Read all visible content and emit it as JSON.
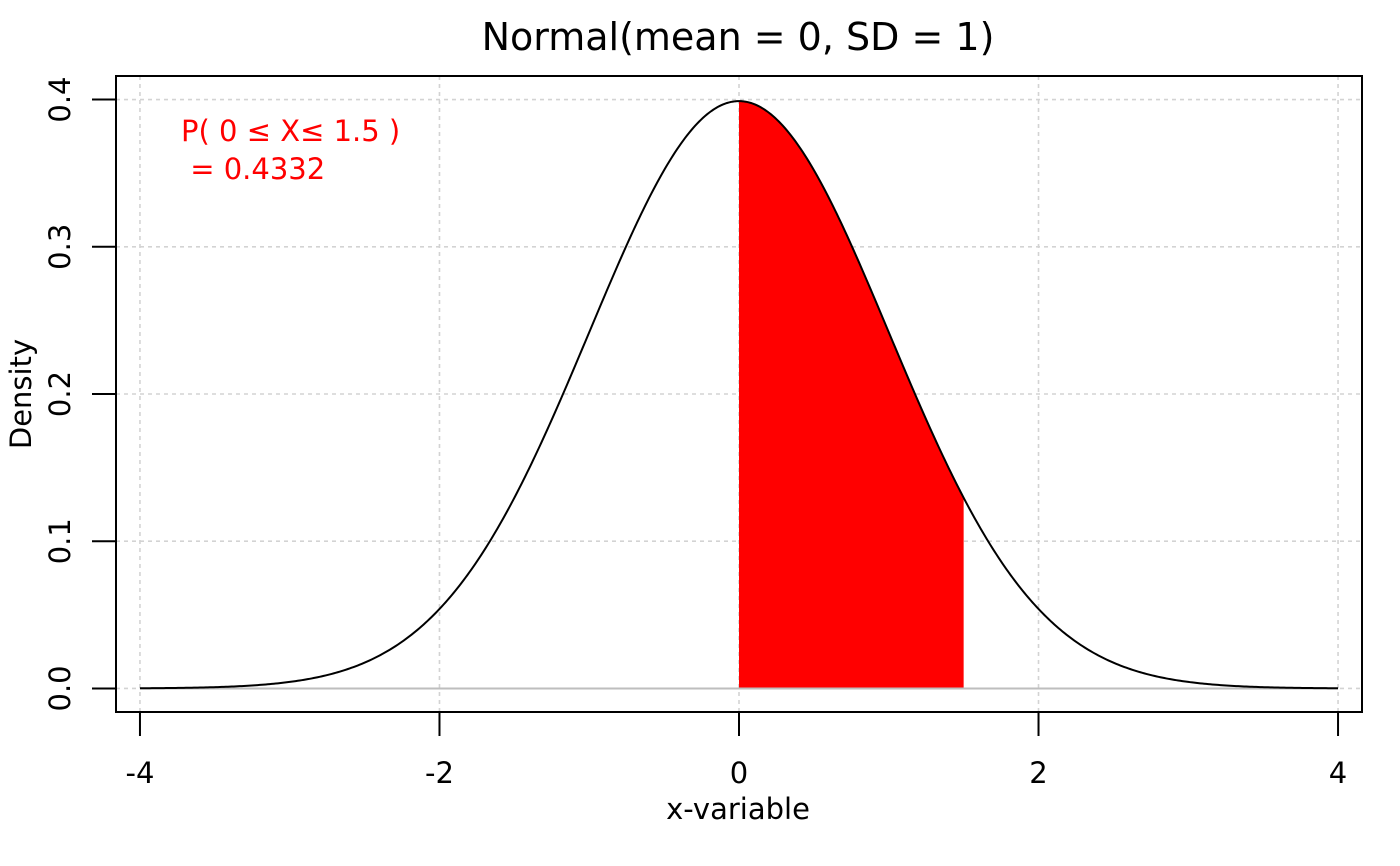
{
  "chart_data": {
    "type": "area",
    "title": "Normal(mean = 0,  SD = 1)",
    "xlabel": "x-variable",
    "ylabel": "Density",
    "xlim": [
      -4.16,
      4.16
    ],
    "ylim": [
      -0.016,
      0.416
    ],
    "x_ticks": [
      -4,
      -2,
      0,
      2,
      4
    ],
    "x_tick_labels": [
      "-4",
      "-2",
      "0",
      "2",
      "4"
    ],
    "y_ticks": [
      0.0,
      0.1,
      0.2,
      0.3,
      0.4
    ],
    "y_tick_labels": [
      "0.0",
      "0.1",
      "0.2",
      "0.3",
      "0.4"
    ],
    "grid": true,
    "distribution": {
      "family": "normal",
      "mean": 0,
      "sd": 1
    },
    "curve": {
      "x": [
        -4,
        -3.5,
        -3,
        -2.5,
        -2,
        -1.5,
        -1,
        -0.5,
        0,
        0.5,
        1,
        1.5,
        2,
        2.5,
        3,
        3.5,
        4
      ],
      "y": [
        0.0001,
        0.0009,
        0.0044,
        0.0175,
        0.054,
        0.1295,
        0.242,
        0.3521,
        0.3989,
        0.3521,
        0.242,
        0.1295,
        0.054,
        0.0175,
        0.0044,
        0.0009,
        0.0001
      ]
    },
    "shaded_region": {
      "from": 0,
      "to": 1.5,
      "color": "#ff0000"
    },
    "annotation": {
      "line1": "P( 0 ≤ X≤ 1.5 )",
      "line2": " = 0.4332",
      "color": "#ff0000"
    },
    "colors": {
      "curve": "#000000",
      "baseline": "#bebebe",
      "grid": "#d3d3d3"
    }
  }
}
